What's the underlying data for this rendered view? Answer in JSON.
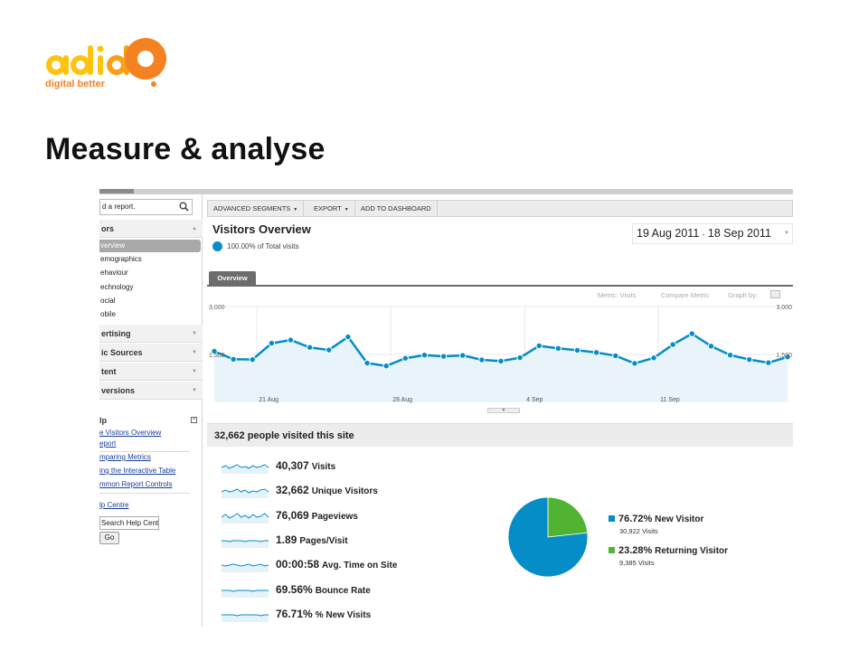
{
  "brand": {
    "logo_text": "adido",
    "tagline": "digital better",
    "colors": {
      "yellow": "#ffc20e",
      "orange": "#f58220"
    }
  },
  "slide": {
    "title": "Measure & analyse"
  },
  "sidebar": {
    "search_placeholder": "d a report.",
    "search_icon": "search-icon",
    "sections": [
      {
        "label": "ors",
        "icon": "caret-up-icon"
      },
      {
        "label": "ertising",
        "icon": "caret-down-icon"
      },
      {
        "label": "ic Sources",
        "icon": "caret-down-icon"
      },
      {
        "label": "tent",
        "icon": "caret-down-icon"
      },
      {
        "label": "versions",
        "icon": "caret-down-icon"
      }
    ],
    "visitors_items": [
      "verview",
      "emographics",
      "ehaviour",
      "echnology",
      "ocial",
      "obile"
    ],
    "help": {
      "title": "lp",
      "links": [
        "e Visitors Overview",
        "eport",
        "mparing Metrics",
        "ing the Interactive Table",
        "mmon Report Controls",
        "lp Centre"
      ],
      "search_value": "Search Help Centre",
      "go_label": "Go"
    }
  },
  "toolbar": {
    "advanced_segments": "ADVANCED SEGMENTS",
    "export": "EXPORT",
    "add_to_dashboard": "ADD TO DASHBOARD"
  },
  "report": {
    "title": "Visitors Overview",
    "subtitle": "100.00% of Total visits",
    "date_start": "19 Aug 2011",
    "date_sep": "-",
    "date_end": "18 Sep 2011",
    "tab": "Overview",
    "metric_label": "Metric:",
    "metric_value": "Visits",
    "compare_metric": "Compare Metric",
    "graph_by": "Graph by:",
    "summary_title": "32,662 people visited this site"
  },
  "chart_data": {
    "type": "area",
    "series": [
      {
        "values": [
          1600,
          1350,
          1340,
          1850,
          1950,
          1720,
          1640,
          2050,
          1230,
          1140,
          1380,
          1480,
          1440,
          1470,
          1330,
          1290,
          1400,
          1770,
          1690,
          1630,
          1560,
          1460,
          1220,
          1390,
          1810,
          2150,
          1760,
          1480,
          1340,
          1240,
          1420
        ]
      }
    ],
    "x_tick_labels": [
      "21 Aug",
      "28 Aug",
      "4 Sep",
      "11 Sep"
    ],
    "y_tick_labels": [
      "3,000",
      "1,500"
    ],
    "ylim": [
      0,
      3000
    ],
    "grid": true,
    "color": "#058dc7",
    "fill": "#e8f3fa"
  },
  "stats": [
    {
      "value": "40,307",
      "label": "Visits",
      "spark": [
        5,
        7,
        4,
        6,
        8,
        5,
        6,
        4,
        7,
        5,
        6,
        8,
        5
      ]
    },
    {
      "value": "32,662",
      "label": "Unique Visitors",
      "spark": [
        5,
        7,
        5,
        6,
        8,
        5,
        7,
        4,
        6,
        5,
        7,
        8,
        5
      ]
    },
    {
      "value": "76,069",
      "label": "Pageviews",
      "spark": [
        5,
        8,
        4,
        6,
        9,
        5,
        7,
        4,
        8,
        5,
        6,
        9,
        5
      ]
    },
    {
      "value": "1.89",
      "label": "Pages/Visit",
      "spark": [
        6,
        6,
        5,
        6,
        6,
        6,
        5,
        6,
        6,
        6,
        5,
        6,
        6
      ]
    },
    {
      "value": "00:00:58",
      "label": "Avg. Time on Site",
      "spark": [
        6,
        5,
        6,
        7,
        6,
        5,
        6,
        7,
        5,
        6,
        7,
        5,
        6
      ]
    },
    {
      "value": "69.56%",
      "label": "Bounce Rate",
      "spark": [
        6,
        6,
        6,
        5,
        6,
        6,
        6,
        6,
        5,
        6,
        6,
        6,
        6
      ]
    },
    {
      "value": "76.71%",
      "label": "% New Visits",
      "spark": [
        6,
        6,
        6,
        6,
        5,
        6,
        6,
        6,
        6,
        6,
        5,
        6,
        6
      ]
    }
  ],
  "pie": {
    "slices": [
      {
        "label": "New Visitor",
        "percent": "76.72%",
        "value_text": "30,922 Visits",
        "fraction": 0.7672,
        "color": "#058dc7"
      },
      {
        "label": "Returning Visitor",
        "percent": "23.28%",
        "value_text": "9,385 Visits",
        "fraction": 0.2328,
        "color": "#50b432"
      }
    ]
  }
}
